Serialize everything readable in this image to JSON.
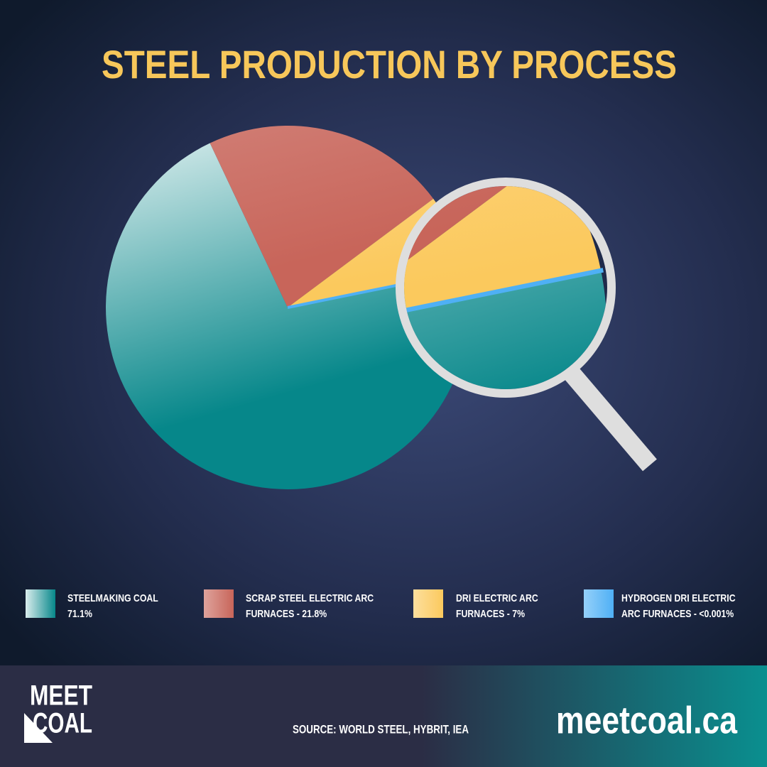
{
  "chart_data": {
    "type": "pie",
    "title": "STEEL PRODUCTION BY PROCESS",
    "categories": [
      "STEELMAKING COAL\n71.1%",
      "SCRAP STEEL ELECTRIC ARC\nFURNACES - 21.8%",
      "DRI ELECTRIC ARC\nFURNACES - 7%",
      "HYDROGEN DRI ELECTRIC\nARC FURNACES - <0.001%"
    ],
    "values": [
      71.1,
      21.8,
      7,
      0.001
    ],
    "colors": [
      "#06878a",
      "#c8655a",
      "#fbc95d",
      "#4fb0f5"
    ],
    "legend": "bottom"
  },
  "footer": {
    "logo": [
      "MEET",
      "COAL"
    ],
    "source": "SOURCE: WORLD STEEL, HYBRIT, IEA",
    "website": "meetcoal.ca"
  }
}
